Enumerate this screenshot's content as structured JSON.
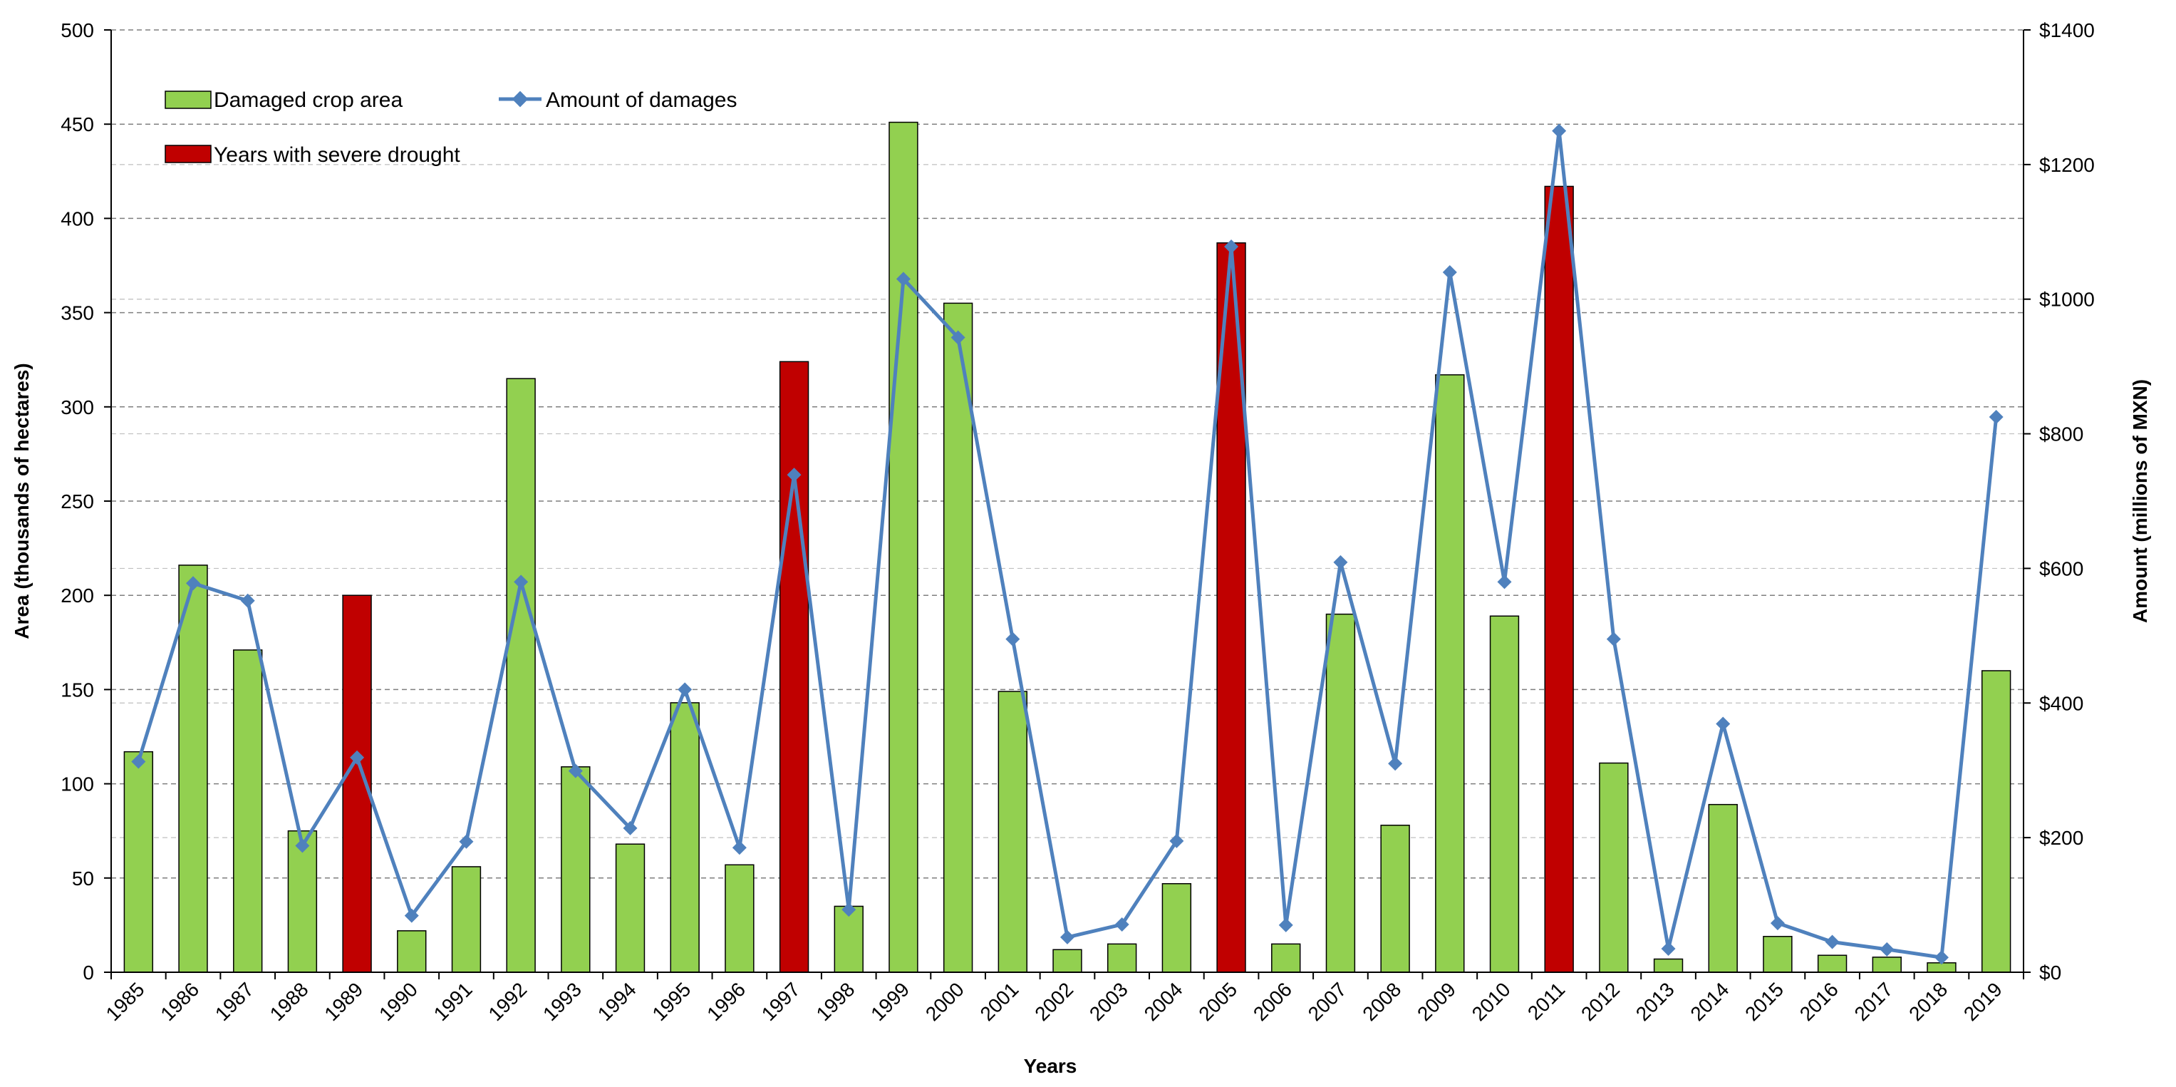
{
  "chart_data": {
    "type": "bar+line",
    "title": "",
    "xlabel": "Years",
    "ylabel_left": "Area  (thousands of hectares)",
    "ylabel_right": "Amount (millions of MXN)",
    "ylim_left": [
      0,
      500
    ],
    "ylim_right": [
      0,
      1400
    ],
    "yticks_left": [
      "0",
      "50",
      "100",
      "150",
      "200",
      "250",
      "300",
      "350",
      "400",
      "450",
      "500"
    ],
    "yticks_right": [
      "$0",
      "$200",
      "$400",
      "$600",
      "$800",
      "$1000",
      "$1200",
      "$1400"
    ],
    "grid": true,
    "legend_position": "top-left",
    "categories": [
      "1985",
      "1986",
      "1987",
      "1988",
      "1989",
      "1990",
      "1991",
      "1992",
      "1993",
      "1994",
      "1995",
      "1996",
      "1997",
      "1998",
      "1999",
      "2000",
      "2001",
      "2002",
      "2003",
      "2004",
      "2005",
      "2006",
      "2007",
      "2008",
      "2009",
      "2010",
      "2011",
      "2012",
      "2013",
      "2014",
      "2015",
      "2016",
      "2017",
      "2018",
      "2019"
    ],
    "series": [
      {
        "name": "Damaged crop area",
        "kind": "bar",
        "axis": "left",
        "values": [
          117,
          216,
          171,
          75,
          200,
          22,
          56,
          315,
          109,
          68,
          143,
          57,
          324,
          35,
          451,
          355,
          149,
          12,
          15,
          47,
          387,
          15,
          190,
          78,
          317,
          189,
          417,
          111,
          7,
          89,
          19,
          9,
          8,
          5,
          160
        ]
      },
      {
        "name": "Amount of damages",
        "kind": "line",
        "axis": "right",
        "values": [
          313,
          578,
          552,
          188,
          319,
          84,
          194,
          580,
          299,
          214,
          420,
          185,
          739,
          93,
          1030,
          943,
          495,
          52,
          71,
          195,
          1078,
          70,
          609,
          310,
          1040,
          580,
          1250,
          495,
          35,
          369,
          73,
          45,
          34,
          22,
          825
        ]
      }
    ],
    "severe_drought_years": [
      "1989",
      "1997",
      "2005",
      "2011"
    ],
    "legend": {
      "bar_label": "Damaged crop area",
      "line_label": "Amount of damages",
      "drought_label": "Years with severe drought"
    }
  },
  "colors": {
    "bar": "#92d050",
    "bar_drought": "#c00000",
    "line": "#4f81bd",
    "grid": "#7f7f7f",
    "axis": "#000000"
  }
}
